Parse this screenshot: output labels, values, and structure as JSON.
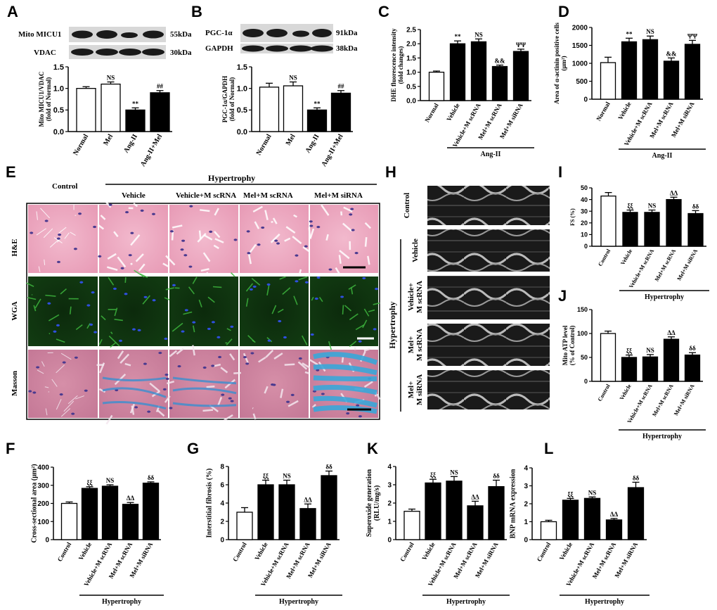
{
  "panel_letters": {
    "A": "A",
    "B": "B",
    "C": "C",
    "D": "D",
    "E": "E",
    "F": "F",
    "G": "G",
    "H": "H",
    "I": "I",
    "J": "J",
    "K": "K",
    "L": "L"
  },
  "blots": {
    "A": [
      {
        "name": "Mito MICU1",
        "size": "55kDa"
      },
      {
        "name": "VDAC",
        "size": "30kDa"
      }
    ],
    "B": [
      {
        "name": "PGC-1α",
        "size": "91kDa"
      },
      {
        "name": "GAPDH",
        "size": "38kDa"
      }
    ]
  },
  "histology": {
    "control_label": "Control",
    "group_label": "Hypertrophy",
    "columns": [
      "Vehicle",
      "Vehicle+M scRNA",
      "Mel+M scRNA",
      "Mel+M siRNA"
    ],
    "rows": [
      "H&E",
      "WGA",
      "Masson"
    ]
  },
  "echo": {
    "control_label": "Control",
    "group_label": "Hypertrophy",
    "rows": [
      "Vehicle",
      "Vehicle+\nM scRNA",
      "Mel+\nM scRNA",
      "Mel+\nM siRNA"
    ]
  },
  "chart_data": [
    {
      "id": "A",
      "type": "bar",
      "categories": [
        "Normal",
        "Mel",
        "Ang-II",
        "Ang-II+Mel"
      ],
      "values": [
        1.0,
        1.1,
        0.5,
        0.9
      ],
      "errors": [
        0.04,
        0.05,
        0.05,
        0.05
      ],
      "fills": [
        "#ffffff",
        "#ffffff",
        "#000000",
        "#000000"
      ],
      "marks": [
        "",
        "NS",
        "**",
        "##"
      ],
      "ylabel": "Mito MICU1/VDAC\n(fold of Normal)",
      "ylim": [
        0,
        1.5
      ],
      "ticks": [
        0.0,
        0.5,
        1.0,
        1.5
      ],
      "group_label": "",
      "group_from": 0
    },
    {
      "id": "B",
      "type": "bar",
      "categories": [
        "Normal",
        "Mel",
        "Ang-II",
        "Ang-II+Mel"
      ],
      "values": [
        1.03,
        1.06,
        0.5,
        0.89
      ],
      "errors": [
        0.09,
        0.09,
        0.05,
        0.06
      ],
      "fills": [
        "#ffffff",
        "#ffffff",
        "#000000",
        "#000000"
      ],
      "marks": [
        "",
        "NS",
        "**",
        "##"
      ],
      "ylabel": "PGC-1α/GAPDH\n(fold of Normal)",
      "ylim": [
        0,
        1.5
      ],
      "ticks": [
        0.0,
        0.5,
        1.0,
        1.5
      ],
      "group_label": "",
      "group_from": 0
    },
    {
      "id": "C",
      "type": "bar",
      "categories": [
        "Normal",
        "Vehicle",
        "Vehicle+M scRNA",
        "Mel+M scRNA",
        "Mel+M siRNA"
      ],
      "values": [
        1.0,
        2.0,
        2.07,
        1.2,
        1.73
      ],
      "errors": [
        0.04,
        0.1,
        0.1,
        0.05,
        0.08
      ],
      "fills": [
        "#ffffff",
        "#000000",
        "#000000",
        "#000000",
        "#000000"
      ],
      "marks": [
        "",
        "**",
        "NS",
        "&&",
        "ΨΨ"
      ],
      "ylabel": "DHE fluorescence intensity\n(fold changes)",
      "ylim": [
        0,
        2.5
      ],
      "ticks": [
        0.0,
        0.5,
        1.0,
        1.5,
        2.0,
        2.5
      ],
      "group_label": "Ang-II",
      "group_from": 1
    },
    {
      "id": "D",
      "type": "bar",
      "categories": [
        "Normal",
        "Vehicle",
        "Vehicle+M scRNA",
        "Mel+M scRNA",
        "Mel+M siRNA"
      ],
      "values": [
        1020,
        1600,
        1660,
        1060,
        1530
      ],
      "errors": [
        150,
        100,
        100,
        90,
        110
      ],
      "fills": [
        "#ffffff",
        "#000000",
        "#000000",
        "#000000",
        "#000000"
      ],
      "marks": [
        "",
        "**",
        "NS",
        "&&",
        "ΨΨ"
      ],
      "ylabel": "Area of α-actinin positive cells\n(μm²)",
      "ylim": [
        0,
        2000
      ],
      "ticks": [
        0,
        500,
        1000,
        1500,
        2000
      ],
      "group_label": "Ang-II",
      "group_from": 1
    },
    {
      "id": "I",
      "type": "bar",
      "categories": [
        "Control",
        "Vehicle",
        "Vehicle+M scRNA",
        "Mel+M scRNA",
        "Mel+M siRNA"
      ],
      "values": [
        43,
        29,
        29,
        40,
        28
      ],
      "errors": [
        3,
        2,
        2,
        2,
        2.5
      ],
      "fills": [
        "#ffffff",
        "#000000",
        "#000000",
        "#000000",
        "#000000"
      ],
      "marks": [
        "",
        "ξξ",
        "NS",
        "ΔΔ",
        "δδ"
      ],
      "ylabel": "FS (%)",
      "ylim": [
        0,
        50
      ],
      "ticks": [
        0,
        10,
        20,
        30,
        40,
        50
      ],
      "group_label": "Hypertrophy",
      "group_from": 1
    },
    {
      "id": "J",
      "type": "bar",
      "categories": [
        "Control",
        "Vehicle",
        "Vehicle+M scRNA",
        "Mel+M scRNA",
        "Mel+M siRNA"
      ],
      "values": [
        100,
        50,
        51,
        88,
        55
      ],
      "errors": [
        5,
        5,
        5,
        5,
        5
      ],
      "fills": [
        "#ffffff",
        "#000000",
        "#000000",
        "#000000",
        "#000000"
      ],
      "marks": [
        "",
        "ξξ",
        "NS",
        "ΔΔ",
        "δδ"
      ],
      "ylabel": "Mito ATP level\n(% of Control)",
      "ylim": [
        0,
        150
      ],
      "ticks": [
        0,
        50,
        100,
        150
      ],
      "group_label": "Hypertrophy",
      "group_from": 1
    },
    {
      "id": "F",
      "type": "bar",
      "categories": [
        "Control",
        "Vehicle",
        "Vehicle+M scRNA",
        "Mel+M scRNA",
        "Mel+M siRNA"
      ],
      "values": [
        200,
        283,
        295,
        195,
        312
      ],
      "errors": [
        8,
        9,
        8,
        10,
        7
      ],
      "fills": [
        "#ffffff",
        "#000000",
        "#000000",
        "#000000",
        "#000000"
      ],
      "marks": [
        "",
        "ξξ",
        "NS",
        "ΔΔ",
        "δδ"
      ],
      "ylabel": "Cross-sectional area (μm²)",
      "ylim": [
        0,
        400
      ],
      "ticks": [
        0,
        100,
        200,
        300,
        400
      ],
      "group_label": "Hypertrophy",
      "group_from": 1
    },
    {
      "id": "G",
      "type": "bar",
      "categories": [
        "Control",
        "Vehicle",
        "Vehicle+M scRNA",
        "Mel+M scRNA",
        "Mel+M siRNA"
      ],
      "values": [
        3,
        6,
        6,
        3.4,
        7
      ],
      "errors": [
        0.5,
        0.5,
        0.5,
        0.5,
        0.5
      ],
      "fills": [
        "#ffffff",
        "#000000",
        "#000000",
        "#000000",
        "#000000"
      ],
      "marks": [
        "",
        "ξξ",
        "NS",
        "ΔΔ",
        "δδ"
      ],
      "ylabel": "Interstitial fibrosis (%)",
      "ylim": [
        0,
        8
      ],
      "ticks": [
        0,
        2,
        4,
        6,
        8
      ],
      "group_label": "Hypertrophy",
      "group_from": 1
    },
    {
      "id": "K",
      "type": "bar",
      "categories": [
        "Control",
        "Vehicle",
        "Vehicle+M scRNA",
        "Mel+M scRNA",
        "Mel+M siRNA"
      ],
      "values": [
        1.55,
        3.1,
        3.2,
        1.85,
        2.9
      ],
      "errors": [
        0.12,
        0.2,
        0.25,
        0.25,
        0.35
      ],
      "fills": [
        "#ffffff",
        "#000000",
        "#000000",
        "#000000",
        "#000000"
      ],
      "marks": [
        "",
        "ξξ",
        "NS",
        "ΔΔ",
        "δδ"
      ],
      "ylabel": "Superoxide generation\n(RLU/mg/s)",
      "ylim": [
        0,
        4
      ],
      "ticks": [
        0,
        1,
        2,
        3,
        4
      ],
      "group_label": "Hypertrophy",
      "group_from": 1
    },
    {
      "id": "L",
      "type": "bar",
      "categories": [
        "Control",
        "Vehicle",
        "Vehicle+M scRNA",
        "Mel+M scRNA",
        "Mel+M siRNA"
      ],
      "values": [
        1.0,
        2.2,
        2.3,
        1.1,
        2.9
      ],
      "errors": [
        0.08,
        0.1,
        0.08,
        0.08,
        0.3
      ],
      "fills": [
        "#ffffff",
        "#000000",
        "#000000",
        "#000000",
        "#000000"
      ],
      "marks": [
        "",
        "ξξ",
        "NS",
        "ΔΔ",
        "δδ"
      ],
      "ylabel": "BNP mRNA expression",
      "ylim": [
        0,
        4
      ],
      "ticks": [
        0,
        1,
        2,
        3,
        4
      ],
      "group_label": "Hypertrophy",
      "group_from": 1
    }
  ]
}
